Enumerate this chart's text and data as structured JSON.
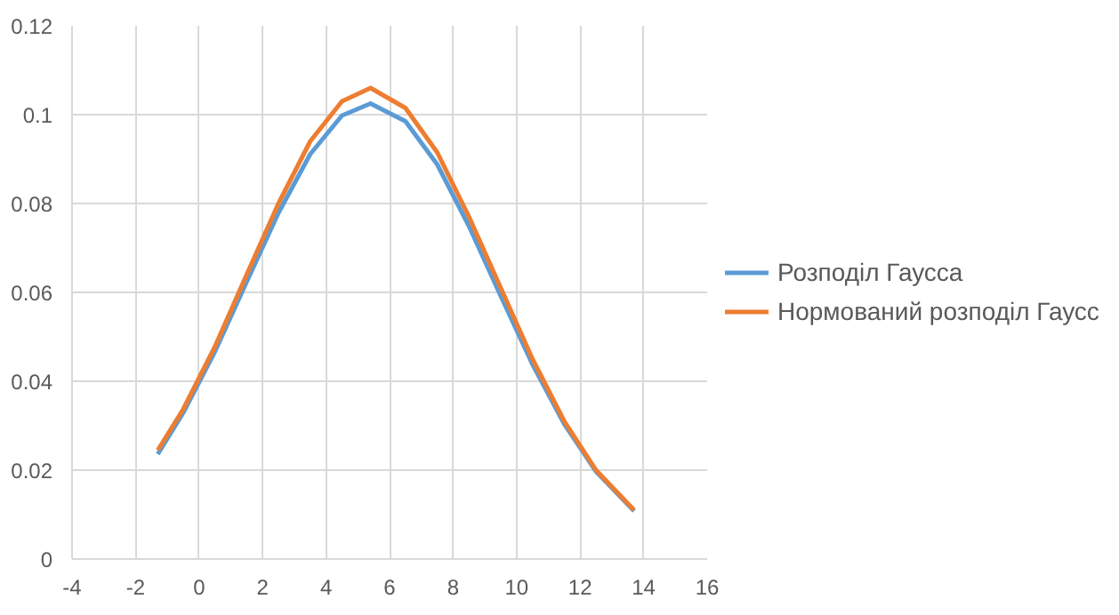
{
  "chart_data": {
    "type": "line",
    "x": [
      -1.3,
      -0.5,
      0.5,
      1.5,
      2.5,
      3.5,
      4.5,
      5.4,
      6.5,
      7.5,
      8.5,
      9.5,
      10.5,
      11.5,
      12.5,
      13.7
    ],
    "series": [
      {
        "name": "Розподіл Гаусса",
        "color": "#5b9bd5",
        "values": [
          0.0236,
          0.0329,
          0.0467,
          0.0624,
          0.0779,
          0.0911,
          0.0998,
          0.1025,
          0.0985,
          0.0888,
          0.0749,
          0.0592,
          0.0438,
          0.0304,
          0.0197,
          0.0108
        ]
      },
      {
        "name": "Нормований розподіл Гаусс",
        "color": "#ed7d31",
        "values": [
          0.0245,
          0.0337,
          0.0478,
          0.064,
          0.08,
          0.094,
          0.103,
          0.106,
          0.1015,
          0.0915,
          0.077,
          0.061,
          0.045,
          0.031,
          0.02,
          0.011
        ]
      }
    ],
    "xlim": [
      -4,
      16
    ],
    "xticks": [
      -4,
      -2,
      0,
      2,
      4,
      6,
      8,
      10,
      12,
      14,
      16
    ],
    "ylim": [
      0,
      0.12
    ],
    "yticks": [
      0,
      0.02,
      0.04,
      0.06,
      0.08,
      0.1,
      0.12
    ],
    "grid": true,
    "legend": "right",
    "marker": "none",
    "line_style": "solid"
  }
}
